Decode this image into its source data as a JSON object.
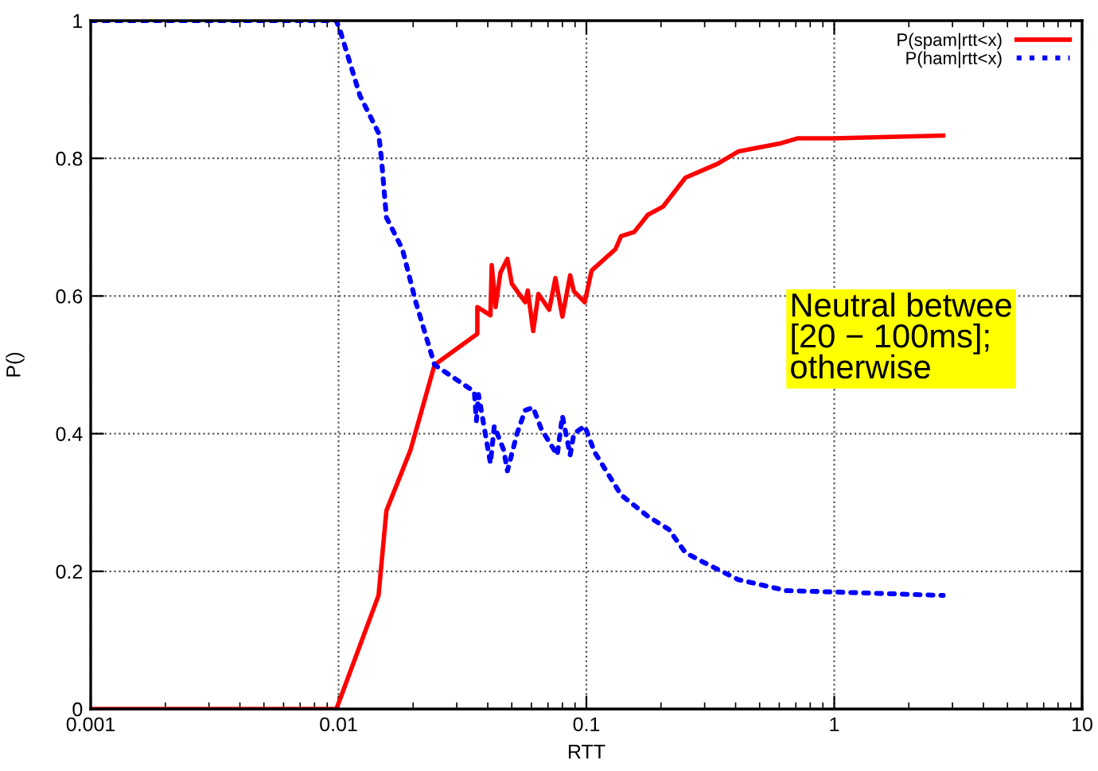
{
  "chart_data": {
    "type": "line",
    "xlabel": "RTT",
    "ylabel": "P()",
    "log": "x",
    "xlim": [
      0.001,
      10
    ],
    "xticks": [
      0.001,
      0.01,
      0.1,
      1,
      10
    ],
    "ylim": [
      0,
      1
    ],
    "yticks": [
      0,
      0.2,
      0.4,
      0.6,
      0.8,
      1
    ],
    "grid": true,
    "legend": "top right",
    "marker": "none",
    "annotations": [
      "Neutral betwee\n[20 − 100ms];\notherwise"
    ],
    "series": [
      {
        "name": "P(spam|rtt<x)",
        "color": "#ff0000",
        "line_style": "solid",
        "x": [
          0.001,
          0.0098,
          0.0145,
          0.0156,
          0.0195,
          0.0244,
          0.0363,
          0.0363,
          0.041,
          0.0415,
          0.043,
          0.045,
          0.048,
          0.05,
          0.0566,
          0.058,
          0.061,
          0.064,
          0.0708,
          0.075,
          0.08,
          0.086,
          0.089,
          0.0985,
          0.105,
          0.131,
          0.138,
          0.156,
          0.177,
          0.204,
          0.251,
          0.296,
          0.338,
          0.41,
          0.61,
          0.71,
          1,
          2.75
        ],
        "values": [
          0,
          0,
          0.165,
          0.288,
          0.376,
          0.5,
          0.545,
          0.584,
          0.572,
          0.645,
          0.584,
          0.634,
          0.654,
          0.618,
          0.591,
          0.608,
          0.549,
          0.603,
          0.58,
          0.626,
          0.57,
          0.63,
          0.607,
          0.591,
          0.637,
          0.668,
          0.687,
          0.693,
          0.718,
          0.73,
          0.772,
          0.783,
          0.792,
          0.81,
          0.822,
          0.829,
          0.829,
          0.833
        ]
      },
      {
        "name": "P(ham|rtt<x)",
        "color": "#0000ff",
        "line_style": "dotted",
        "x": [
          0.001,
          0.0098,
          0.0102,
          0.0122,
          0.0145,
          0.0149,
          0.0156,
          0.0181,
          0.0205,
          0.0244,
          0.0353,
          0.036,
          0.0367,
          0.041,
          0.0425,
          0.0464,
          0.048,
          0.0525,
          0.0566,
          0.061,
          0.0657,
          0.0763,
          0.08,
          0.086,
          0.089,
          0.0985,
          0.108,
          0.138,
          0.177,
          0.215,
          0.251,
          0.305,
          0.41,
          0.64,
          1,
          2.75
        ],
        "values": [
          1,
          1,
          0.983,
          0.891,
          0.837,
          0.799,
          0.714,
          0.668,
          0.591,
          0.5,
          0.461,
          0.419,
          0.457,
          0.357,
          0.411,
          0.376,
          0.346,
          0.4,
          0.434,
          0.438,
          0.407,
          0.369,
          0.426,
          0.369,
          0.4,
          0.411,
          0.373,
          0.311,
          0.28,
          0.261,
          0.227,
          0.211,
          0.188,
          0.172,
          0.17,
          0.165
        ]
      }
    ]
  }
}
